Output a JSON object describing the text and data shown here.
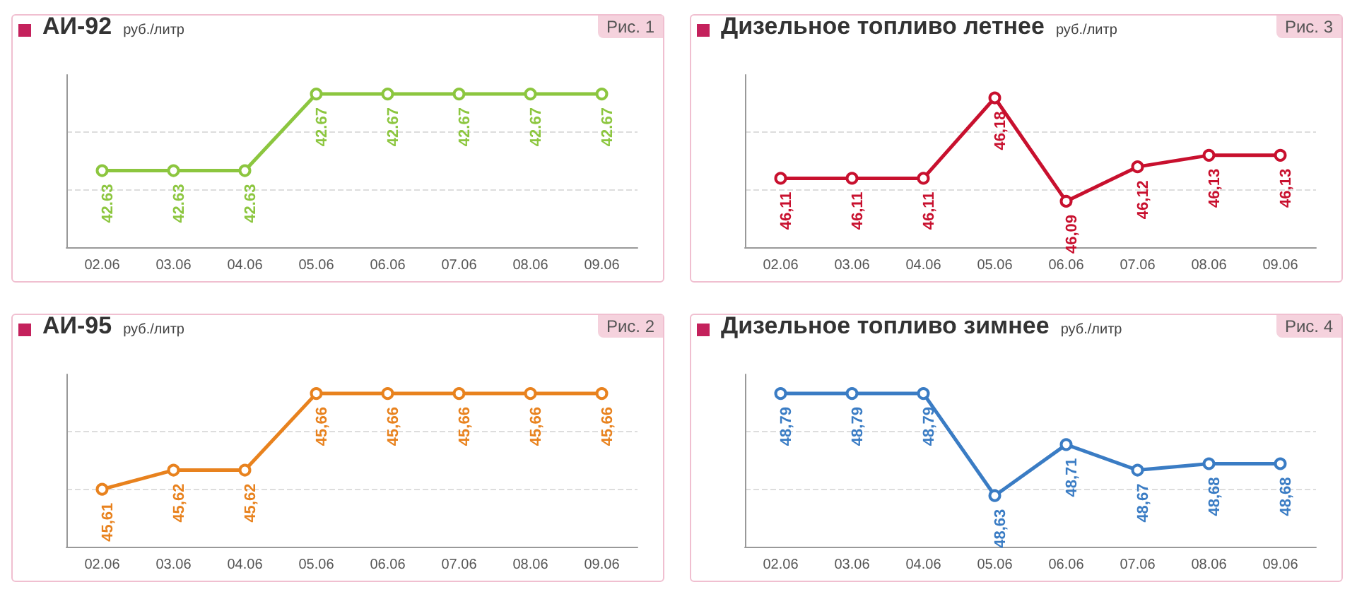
{
  "chart_data": [
    {
      "type": "line",
      "title": "АИ-92",
      "subtitle": "руб./литр",
      "annotations": [
        "Рис. 1"
      ],
      "categories": [
        "02.06",
        "03.06",
        "04.06",
        "05.06",
        "06.06",
        "07.06",
        "08.06",
        "09.06"
      ],
      "series": [
        {
          "color": "#8cc63f",
          "values": [
            42.63,
            42.63,
            42.63,
            42.67,
            42.67,
            42.67,
            42.67,
            42.67
          ],
          "value_labels": [
            "42.63",
            "42.63",
            "42.63",
            "42.67",
            "42.67",
            "42.67",
            "42.67",
            "42.67"
          ]
        }
      ],
      "ylim": [
        42.59,
        42.68
      ],
      "yticks": [
        {
          "value": 42.62,
          "label": null
        },
        {
          "value": 42.65,
          "label": null
        }
      ],
      "tick_labels": "x",
      "grid": "y",
      "marker": "circle",
      "line_style": "solid"
    },
    {
      "type": "line",
      "title": "Дизельное топливо летнее",
      "subtitle": "руб./литр",
      "annotations": [
        "Рис. 3"
      ],
      "categories": [
        "02.06",
        "03.06",
        "04.06",
        "05.06",
        "06.06",
        "07.06",
        "08.06",
        "09.06"
      ],
      "series": [
        {
          "color": "#c8102e",
          "values": [
            46.11,
            46.11,
            46.11,
            46.18,
            46.09,
            46.12,
            46.13,
            46.13
          ],
          "value_labels": [
            "46,11",
            "46,11",
            "46,11",
            "46,18",
            "46,09",
            "46,12",
            "46,13",
            "46,13"
          ]
        }
      ],
      "ylim": [
        46.05,
        46.2
      ],
      "yticks": [
        {
          "value": 46.1,
          "label": null
        },
        {
          "value": 46.15,
          "label": null
        }
      ],
      "tick_labels": "x",
      "grid": "y",
      "marker": "circle",
      "line_style": "solid"
    },
    {
      "type": "line",
      "title": "АИ-95",
      "subtitle": "руб./литр",
      "annotations": [
        "Рис. 2"
      ],
      "categories": [
        "02.06",
        "03.06",
        "04.06",
        "05.06",
        "06.06",
        "07.06",
        "08.06",
        "09.06"
      ],
      "series": [
        {
          "color": "#e8821e",
          "values": [
            45.61,
            45.62,
            45.62,
            45.66,
            45.66,
            45.66,
            45.66,
            45.66
          ],
          "value_labels": [
            "45,61",
            "45,62",
            "45,62",
            "45,66",
            "45,66",
            "45,66",
            "45,66",
            "45,66"
          ]
        }
      ],
      "ylim": [
        45.58,
        45.67
      ],
      "yticks": [
        {
          "value": 45.61,
          "label": null
        },
        {
          "value": 45.64,
          "label": null
        }
      ],
      "tick_labels": "x",
      "grid": "y",
      "marker": "circle",
      "line_style": "solid"
    },
    {
      "type": "line",
      "title": "Дизельное топливо зимнее",
      "subtitle": "руб./литр",
      "annotations": [
        "Рис. 4"
      ],
      "categories": [
        "02.06",
        "03.06",
        "04.06",
        "05.06",
        "06.06",
        "07.06",
        "08.06",
        "09.06"
      ],
      "series": [
        {
          "color": "#3a7cc4",
          "values": [
            48.79,
            48.79,
            48.79,
            48.63,
            48.71,
            48.67,
            48.68,
            48.68
          ],
          "value_labels": [
            "48,79",
            "48,79",
            "48,79",
            "48,63",
            "48,71",
            "48,67",
            "48,68",
            "48,68"
          ]
        }
      ],
      "ylim": [
        48.55,
        48.82
      ],
      "yticks": [
        {
          "value": 48.64,
          "label": null
        },
        {
          "value": 48.73,
          "label": null
        }
      ],
      "tick_labels": "x",
      "grid": "y",
      "marker": "circle",
      "line_style": "solid"
    }
  ]
}
